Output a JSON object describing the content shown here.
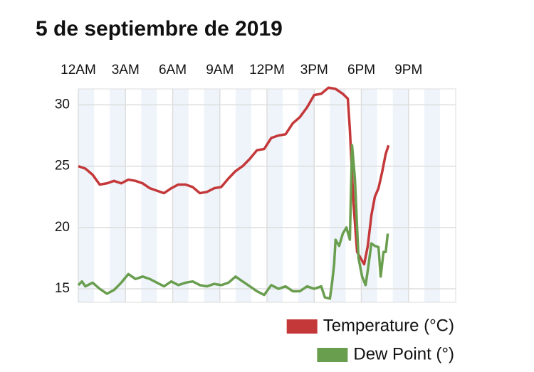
{
  "chart_data": {
    "type": "line",
    "title": "5 de septiembre de 2019",
    "xlim": [
      0,
      24
    ],
    "xticks": [
      {
        "value": 0,
        "label": "12AM"
      },
      {
        "value": 3,
        "label": "3AM"
      },
      {
        "value": 6,
        "label": "6AM"
      },
      {
        "value": 9,
        "label": "9AM"
      },
      {
        "value": 12,
        "label": "12PM"
      },
      {
        "value": 15,
        "label": "3PM"
      },
      {
        "value": 18,
        "label": "6PM"
      },
      {
        "value": 21,
        "label": "9PM"
      }
    ],
    "ylim": [
      13.9,
      31.3
    ],
    "yticks": [
      15,
      20,
      25,
      30
    ],
    "grid": true,
    "series": [
      {
        "name": "Temperature (°C)",
        "color": "#c4383a",
        "x": [
          0,
          0.45,
          0.91,
          1.36,
          1.82,
          2.27,
          2.73,
          3.18,
          3.64,
          4.09,
          4.55,
          5,
          5.45,
          5.91,
          6.36,
          6.82,
          7.27,
          7.73,
          8.18,
          8.64,
          9.09,
          9.55,
          10,
          10.45,
          10.91,
          11.36,
          11.82,
          12.27,
          12.73,
          13.18,
          13.64,
          14.09,
          14.55,
          15,
          15.45,
          15.91,
          16.36,
          16.82,
          17.14,
          17.27,
          17.5,
          17.73,
          18.18,
          18.41,
          18.64,
          18.86,
          19.09,
          19.32,
          19.55,
          19.73
        ],
        "values": [
          25.0,
          24.8,
          24.3,
          23.5,
          23.6,
          23.8,
          23.6,
          23.9,
          23.8,
          23.6,
          23.2,
          23.0,
          22.8,
          23.2,
          23.5,
          23.5,
          23.3,
          22.8,
          22.9,
          23.2,
          23.3,
          24.0,
          24.6,
          25.0,
          25.6,
          26.3,
          26.4,
          27.3,
          27.5,
          27.6,
          28.5,
          29.0,
          29.8,
          30.8,
          30.9,
          31.4,
          31.3,
          30.9,
          30.5,
          28.0,
          22.0,
          18.0,
          17.0,
          18.5,
          21.0,
          22.5,
          23.2,
          24.5,
          26.0,
          26.7
        ]
      },
      {
        "name": "Dew Point (°)",
        "color": "#6a9e4f",
        "x": [
          0,
          0.23,
          0.45,
          0.91,
          1.36,
          1.82,
          2.27,
          2.73,
          3.18,
          3.64,
          4.09,
          4.55,
          5,
          5.45,
          5.91,
          6.36,
          6.82,
          7.27,
          7.73,
          8.18,
          8.64,
          9.09,
          9.55,
          10,
          10.45,
          10.91,
          11.36,
          11.82,
          12.27,
          12.73,
          13.18,
          13.64,
          14.09,
          14.55,
          15,
          15.45,
          15.68,
          16,
          16.14,
          16.27,
          16.36,
          16.59,
          16.82,
          17.05,
          17.27,
          17.41,
          17.59,
          17.82,
          18.05,
          18.27,
          18.41,
          18.64,
          18.86,
          19.09,
          19.23,
          19.41,
          19.55,
          19.68
        ],
        "values": [
          15.3,
          15.6,
          15.2,
          15.5,
          15.0,
          14.6,
          14.9,
          15.5,
          16.2,
          15.8,
          16.0,
          15.8,
          15.5,
          15.2,
          15.6,
          15.3,
          15.5,
          15.6,
          15.3,
          15.2,
          15.4,
          15.3,
          15.5,
          16.0,
          15.6,
          15.2,
          14.8,
          14.5,
          15.3,
          15.0,
          15.2,
          14.8,
          14.8,
          15.2,
          15.0,
          15.2,
          14.3,
          14.2,
          15.5,
          17.0,
          19.0,
          18.5,
          19.5,
          20.0,
          19.0,
          26.7,
          24.0,
          17.5,
          16.0,
          15.3,
          16.5,
          18.7,
          18.5,
          18.4,
          16.0,
          18.0,
          18.0,
          19.5
        ]
      }
    ]
  }
}
